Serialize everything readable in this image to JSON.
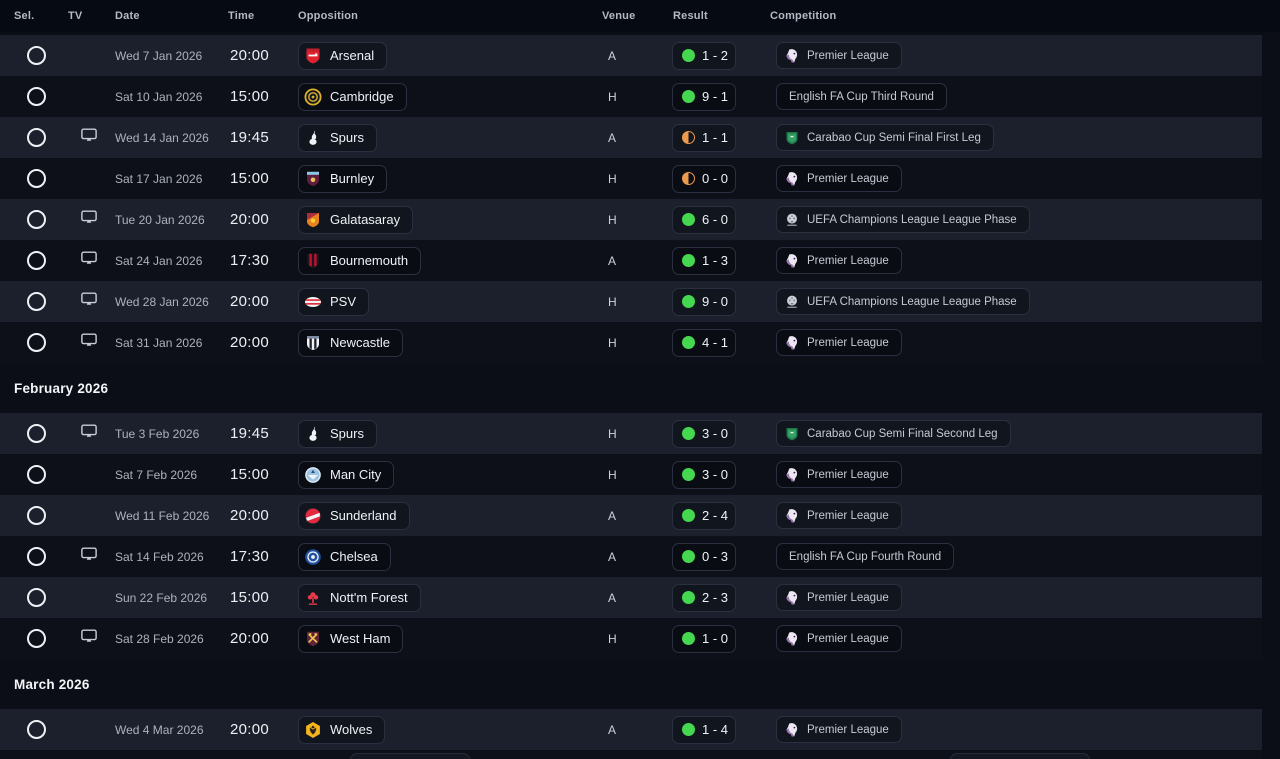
{
  "colors": {
    "win_indicator": "#46d750",
    "draw_indicator": "#eb9a4e",
    "row_highlight": "#1b202c",
    "row_base": "#0d1019"
  },
  "table": {
    "columns": {
      "sel": "Sel.",
      "tv": "TV",
      "date": "Date",
      "time": "Time",
      "opposition": "Opposition",
      "venue": "Venue",
      "result": "Result",
      "competition": "Competition"
    },
    "sections": [
      {
        "title": null,
        "rows": [
          {
            "tv": false,
            "date": "Wed 7 Jan 2026",
            "time": "20:00",
            "opposition": "Arsenal",
            "team_icon": "arsenal-crest",
            "venue": "A",
            "outcome": "win",
            "score": "1 - 2",
            "competition": "Premier League",
            "competition_icon": "premier-league-crest"
          },
          {
            "tv": false,
            "date": "Sat 10 Jan 2026",
            "time": "15:00",
            "opposition": "Cambridge",
            "team_icon": "cambridge-crest",
            "venue": "H",
            "outcome": "win",
            "score": "9 - 1",
            "competition": "English FA Cup Third Round",
            "competition_icon": null
          },
          {
            "tv": true,
            "date": "Wed 14 Jan 2026",
            "time": "19:45",
            "opposition": "Spurs",
            "team_icon": "spurs-crest",
            "venue": "A",
            "outcome": "draw",
            "score": "1 - 1",
            "competition": "Carabao Cup Semi Final First Leg",
            "competition_icon": "carabao-cup-crest"
          },
          {
            "tv": false,
            "date": "Sat 17 Jan 2026",
            "time": "15:00",
            "opposition": "Burnley",
            "team_icon": "burnley-crest",
            "venue": "H",
            "outcome": "draw",
            "score": "0 - 0",
            "competition": "Premier League",
            "competition_icon": "premier-league-crest"
          },
          {
            "tv": true,
            "date": "Tue 20 Jan 2026",
            "time": "20:00",
            "opposition": "Galatasaray",
            "team_icon": "galatasaray-crest",
            "venue": "H",
            "outcome": "win",
            "score": "6 - 0",
            "competition": "UEFA Champions League League Phase",
            "competition_icon": "uefa-champions-league-crest"
          },
          {
            "tv": true,
            "date": "Sat 24 Jan 2026",
            "time": "17:30",
            "opposition": "Bournemouth",
            "team_icon": "bournemouth-crest",
            "venue": "A",
            "outcome": "win",
            "score": "1 - 3",
            "competition": "Premier League",
            "competition_icon": "premier-league-crest"
          },
          {
            "tv": true,
            "date": "Wed 28 Jan 2026",
            "time": "20:00",
            "opposition": "PSV",
            "team_icon": "psv-crest",
            "venue": "H",
            "outcome": "win",
            "score": "9 - 0",
            "competition": "UEFA Champions League League Phase",
            "competition_icon": "uefa-champions-league-crest"
          },
          {
            "tv": true,
            "date": "Sat 31 Jan 2026",
            "time": "20:00",
            "opposition": "Newcastle",
            "team_icon": "newcastle-crest",
            "venue": "H",
            "outcome": "win",
            "score": "4 - 1",
            "competition": "Premier League",
            "competition_icon": "premier-league-crest"
          }
        ]
      },
      {
        "title": "February 2026",
        "rows": [
          {
            "tv": true,
            "date": "Tue 3 Feb 2026",
            "time": "19:45",
            "opposition": "Spurs",
            "team_icon": "spurs-crest",
            "venue": "H",
            "outcome": "win",
            "score": "3 - 0",
            "competition": "Carabao Cup Semi Final Second Leg",
            "competition_icon": "carabao-cup-crest"
          },
          {
            "tv": false,
            "date": "Sat 7 Feb 2026",
            "time": "15:00",
            "opposition": "Man City",
            "team_icon": "man-city-crest",
            "venue": "H",
            "outcome": "win",
            "score": "3 - 0",
            "competition": "Premier League",
            "competition_icon": "premier-league-crest"
          },
          {
            "tv": false,
            "date": "Wed 11 Feb 2026",
            "time": "20:00",
            "opposition": "Sunderland",
            "team_icon": "sunderland-crest",
            "venue": "A",
            "outcome": "win",
            "score": "2 - 4",
            "competition": "Premier League",
            "competition_icon": "premier-league-crest"
          },
          {
            "tv": true,
            "date": "Sat 14 Feb 2026",
            "time": "17:30",
            "opposition": "Chelsea",
            "team_icon": "chelsea-crest",
            "venue": "A",
            "outcome": "win",
            "score": "0 - 3",
            "competition": "English FA Cup Fourth Round",
            "competition_icon": null
          },
          {
            "tv": false,
            "date": "Sun 22 Feb 2026",
            "time": "15:00",
            "opposition": "Nott'm Forest",
            "team_icon": "forest-crest",
            "venue": "A",
            "outcome": "win",
            "score": "2 - 3",
            "competition": "Premier League",
            "competition_icon": "premier-league-crest"
          },
          {
            "tv": true,
            "date": "Sat 28 Feb 2026",
            "time": "20:00",
            "opposition": "West Ham",
            "team_icon": "west-ham-crest",
            "venue": "H",
            "outcome": "win",
            "score": "1 - 0",
            "competition": "Premier League",
            "competition_icon": "premier-league-crest"
          }
        ]
      },
      {
        "title": "March 2026",
        "rows": [
          {
            "tv": false,
            "date": "Wed 4 Mar 2026",
            "time": "20:00",
            "opposition": "Wolves",
            "team_icon": "wolves-crest",
            "venue": "A",
            "outcome": "win",
            "score": "1 - 4",
            "competition": "Premier League",
            "competition_icon": "premier-league-crest"
          }
        ]
      }
    ]
  }
}
